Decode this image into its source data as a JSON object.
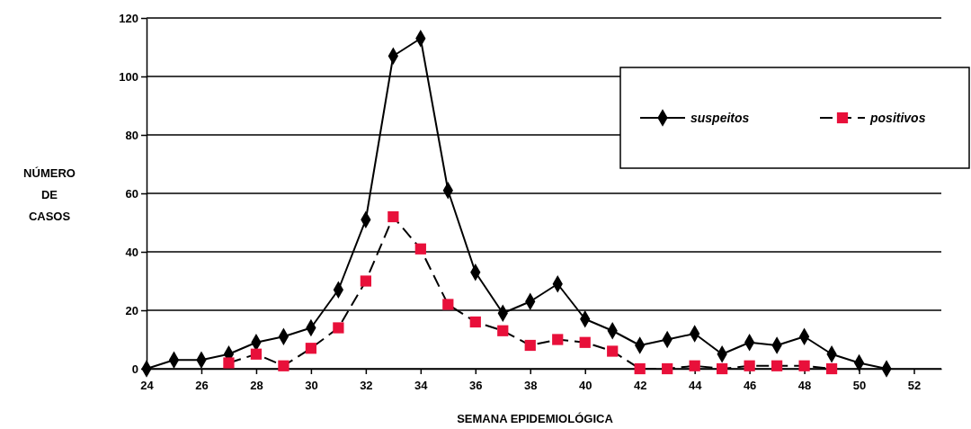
{
  "chart_data": {
    "type": "line",
    "xlabel": "SEMANA EPIDEMIOLÓGICA",
    "ylabel": "NÚMERO DE CASOS",
    "xlim": [
      24,
      53
    ],
    "xticks": [
      24,
      26,
      28,
      30,
      32,
      34,
      36,
      38,
      40,
      42,
      44,
      46,
      48,
      50,
      52
    ],
    "ylim": [
      0,
      120
    ],
    "yticks": [
      0,
      20,
      40,
      60,
      80,
      100,
      120
    ],
    "grid": "y",
    "legend": "top right",
    "series": [
      {
        "name": "suspeitos",
        "color": "#000000",
        "marker": "diamond",
        "line_style": "solid",
        "x": [
          24,
          25,
          26,
          27,
          28,
          29,
          30,
          31,
          32,
          33,
          34,
          35,
          36,
          37,
          38,
          39,
          40,
          41,
          42,
          43,
          44,
          45,
          46,
          47,
          48,
          49,
          50,
          51
        ],
        "values": [
          0,
          3,
          3,
          5,
          9,
          11,
          14,
          27,
          51,
          107,
          113,
          61,
          33,
          19,
          23,
          29,
          17,
          13,
          8,
          10,
          12,
          5,
          9,
          8,
          11,
          5,
          2,
          0
        ]
      },
      {
        "name": "positivos",
        "color": "#e8103a",
        "marker": "square",
        "line_style": "dashed",
        "x": [
          27,
          28,
          29,
          30,
          31,
          32,
          33,
          34,
          35,
          36,
          37,
          38,
          39,
          40,
          41,
          42,
          43,
          44,
          45,
          46,
          47,
          48,
          49
        ],
        "values": [
          2,
          5,
          1,
          7,
          14,
          30,
          52,
          41,
          22,
          16,
          13,
          8,
          10,
          9,
          6,
          0,
          0,
          1,
          0,
          1,
          1,
          1,
          0
        ]
      }
    ]
  }
}
